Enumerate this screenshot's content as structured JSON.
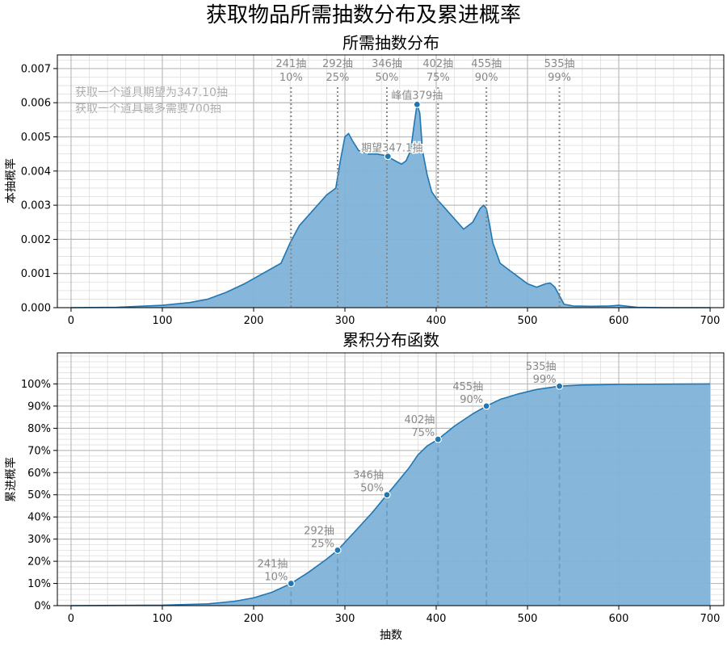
{
  "figure": {
    "suptitle": "获取物品所需抽数分布及累进概率"
  },
  "colors": {
    "line": "#1f77b4",
    "fill": "#7fb2d8",
    "grid": "#cccccc",
    "annotation": "#888888",
    "marker_edge": "#ffffff"
  },
  "chart_data": [
    {
      "type": "area",
      "title": "所需抽数分布",
      "xlabel": "",
      "ylabel": "本抽概率",
      "xlim": [
        -15,
        715
      ],
      "ylim": [
        0,
        0.0074
      ],
      "xticks": [
        0,
        100,
        200,
        300,
        400,
        500,
        600,
        700
      ],
      "xtick_labels": [
        "0",
        "100",
        "200",
        "300",
        "400",
        "500",
        "600",
        "700"
      ],
      "yticks": [
        0,
        0.001,
        0.002,
        0.003,
        0.004,
        0.005,
        0.006,
        0.007
      ],
      "ytick_labels": [
        "0.000",
        "0.001",
        "0.002",
        "0.003",
        "0.004",
        "0.005",
        "0.006",
        "0.007"
      ],
      "grid": true,
      "series": [
        {
          "x": [
            0,
            50,
            100,
            130,
            150,
            170,
            190,
            210,
            230,
            240,
            250,
            260,
            270,
            280,
            290,
            295,
            300,
            304,
            308,
            315,
            325,
            335,
            345,
            355,
            362,
            367,
            372,
            376,
            379,
            382,
            385,
            390,
            395,
            400,
            410,
            420,
            430,
            440,
            448,
            452,
            455,
            458,
            462,
            470,
            480,
            490,
            500,
            510,
            520,
            525,
            530,
            535,
            540,
            550,
            570,
            590,
            600,
            620,
            650,
            700
          ],
          "y": [
            0,
            1e-05,
            7e-05,
            0.00015,
            0.00025,
            0.00045,
            0.0007,
            0.001,
            0.0013,
            0.0019,
            0.0024,
            0.0027,
            0.003,
            0.0033,
            0.0035,
            0.0043,
            0.005,
            0.0051,
            0.0049,
            0.0046,
            0.0045,
            0.0045,
            0.00445,
            0.0043,
            0.0042,
            0.0043,
            0.0046,
            0.0054,
            0.00595,
            0.0057,
            0.0046,
            0.0039,
            0.0034,
            0.0032,
            0.0029,
            0.0026,
            0.0023,
            0.0025,
            0.0029,
            0.003,
            0.0029,
            0.0025,
            0.0019,
            0.0013,
            0.0011,
            0.0009,
            0.0007,
            0.0006,
            0.0007,
            0.00072,
            0.0006,
            0.00035,
            0.0001,
            5e-05,
            4e-05,
            5e-05,
            7e-05,
            1e-05,
            0,
            0
          ]
        }
      ],
      "markers": [
        {
          "x": 347.1,
          "y": 0.00443,
          "label": "期望347.1抽"
        },
        {
          "x": 379,
          "y": 0.00595,
          "label": "峰值379抽"
        }
      ],
      "percentile_lines": [
        {
          "x": 241,
          "line1": "241抽",
          "line2": "10%"
        },
        {
          "x": 292,
          "line1": "292抽",
          "line2": "25%"
        },
        {
          "x": 346,
          "line1": "346抽",
          "line2": "50%"
        },
        {
          "x": 402,
          "line1": "402抽",
          "line2": "75%"
        },
        {
          "x": 455,
          "line1": "455抽",
          "line2": "90%"
        },
        {
          "x": 535,
          "line1": "535抽",
          "line2": "99%"
        }
      ],
      "info_text": [
        "获取一个道具期望为347.10抽",
        "获取一个道具最多需要700抽"
      ]
    },
    {
      "type": "area",
      "title": "累积分布函数",
      "xlabel": "抽数",
      "ylabel": "累进概率",
      "xlim": [
        -15,
        715
      ],
      "ylim": [
        0,
        1.14
      ],
      "xticks": [
        0,
        100,
        200,
        300,
        400,
        500,
        600,
        700
      ],
      "xtick_labels": [
        "0",
        "100",
        "200",
        "300",
        "400",
        "500",
        "600",
        "700"
      ],
      "yticks": [
        0,
        0.1,
        0.2,
        0.3,
        0.4,
        0.5,
        0.6,
        0.7,
        0.8,
        0.9,
        1.0
      ],
      "ytick_labels": [
        "0%",
        "10%",
        "20%",
        "30%",
        "40%",
        "50%",
        "60%",
        "70%",
        "80%",
        "90%",
        "100%"
      ],
      "grid": true,
      "series": [
        {
          "x": [
            0,
            100,
            150,
            180,
            200,
            220,
            241,
            260,
            280,
            292,
            310,
            330,
            346,
            360,
            370,
            380,
            390,
            402,
            420,
            440,
            455,
            470,
            490,
            510,
            535,
            560,
            600,
            650,
            700
          ],
          "y": [
            0,
            0.002,
            0.008,
            0.02,
            0.035,
            0.06,
            0.1,
            0.15,
            0.21,
            0.25,
            0.33,
            0.42,
            0.5,
            0.57,
            0.62,
            0.68,
            0.72,
            0.75,
            0.81,
            0.865,
            0.9,
            0.93,
            0.955,
            0.975,
            0.99,
            0.995,
            0.998,
            0.999,
            1.0
          ]
        }
      ],
      "points": [
        {
          "x": 241,
          "y": 0.1,
          "line1": "241抽",
          "line2": "10%"
        },
        {
          "x": 292,
          "y": 0.25,
          "line1": "292抽",
          "line2": "25%"
        },
        {
          "x": 346,
          "y": 0.5,
          "line1": "346抽",
          "line2": "50%"
        },
        {
          "x": 402,
          "y": 0.75,
          "line1": "402抽",
          "line2": "75%"
        },
        {
          "x": 455,
          "y": 0.9,
          "line1": "455抽",
          "line2": "90%"
        },
        {
          "x": 535,
          "y": 0.99,
          "line1": "535抽",
          "line2": "99%"
        }
      ]
    }
  ]
}
